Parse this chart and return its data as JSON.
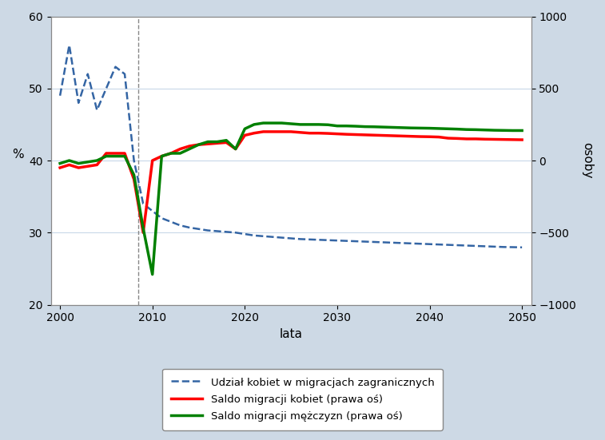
{
  "background_color": "#cdd9e5",
  "plot_bg_color": "#ffffff",
  "left_ylim": [
    20,
    60
  ],
  "right_ylim": [
    -1000,
    1000
  ],
  "left_yticks": [
    20,
    30,
    40,
    50,
    60
  ],
  "right_yticks": [
    -1000,
    -500,
    0,
    500,
    1000
  ],
  "xlim": [
    1999,
    2051
  ],
  "xticks": [
    2000,
    2010,
    2020,
    2030,
    2040,
    2050
  ],
  "xlabel": "lata",
  "ylabel_left": "%",
  "ylabel_right": "osoby",
  "vline_x": 2008.5,
  "legend_labels": [
    "Udział kobiet w migracjach zagranicznych",
    "Saldo migracji kobiet (prawa oś)",
    "Saldo migracji mężczyzn (prawa oś)"
  ],
  "dashed_blue": {
    "x": [
      2000,
      2001,
      2002,
      2003,
      2004,
      2005,
      2006,
      2007,
      2008,
      2009,
      2010,
      2011,
      2012,
      2013,
      2014,
      2015,
      2016,
      2017,
      2018,
      2019,
      2020,
      2021,
      2022,
      2023,
      2024,
      2025,
      2026,
      2027,
      2028,
      2029,
      2030,
      2031,
      2032,
      2033,
      2034,
      2035,
      2036,
      2037,
      2038,
      2039,
      2040,
      2041,
      2042,
      2043,
      2044,
      2045,
      2046,
      2047,
      2048,
      2049,
      2050
    ],
    "y": [
      49,
      56,
      48,
      52,
      47,
      50,
      53,
      52,
      40,
      34,
      33,
      32,
      31.5,
      31,
      30.7,
      30.5,
      30.3,
      30.2,
      30.1,
      30.0,
      29.8,
      29.6,
      29.5,
      29.4,
      29.3,
      29.2,
      29.1,
      29.05,
      29.0,
      28.95,
      28.9,
      28.85,
      28.8,
      28.75,
      28.7,
      28.65,
      28.6,
      28.55,
      28.5,
      28.45,
      28.4,
      28.35,
      28.3,
      28.25,
      28.2,
      28.15,
      28.1,
      28.05,
      28.0,
      27.98,
      27.95
    ],
    "color": "#3465a4",
    "linestyle": "dashed",
    "linewidth": 1.8
  },
  "red_line": {
    "x": [
      2000,
      2001,
      2002,
      2003,
      2004,
      2005,
      2006,
      2007,
      2008,
      2009,
      2010,
      2011,
      2012,
      2013,
      2014,
      2015,
      2016,
      2017,
      2018,
      2019,
      2020,
      2021,
      2022,
      2023,
      2024,
      2025,
      2026,
      2027,
      2028,
      2029,
      2030,
      2031,
      2032,
      2033,
      2034,
      2035,
      2036,
      2037,
      2038,
      2039,
      2040,
      2041,
      2042,
      2043,
      2044,
      2045,
      2046,
      2047,
      2048,
      2049,
      2050
    ],
    "y": [
      -50,
      -30,
      -50,
      -40,
      -30,
      50,
      50,
      50,
      -130,
      -500,
      0,
      30,
      50,
      80,
      100,
      110,
      115,
      120,
      125,
      80,
      175,
      190,
      200,
      200,
      200,
      200,
      195,
      190,
      190,
      188,
      185,
      182,
      180,
      178,
      176,
      174,
      172,
      170,
      168,
      166,
      165,
      163,
      155,
      153,
      150,
      150,
      148,
      147,
      146,
      145,
      144
    ],
    "color": "#ff0000",
    "linestyle": "solid",
    "linewidth": 2.5
  },
  "green_line": {
    "x": [
      2000,
      2001,
      2002,
      2003,
      2004,
      2005,
      2006,
      2007,
      2008,
      2009,
      2010,
      2011,
      2012,
      2013,
      2014,
      2015,
      2016,
      2017,
      2018,
      2019,
      2020,
      2021,
      2022,
      2023,
      2024,
      2025,
      2026,
      2027,
      2028,
      2029,
      2030,
      2031,
      2032,
      2033,
      2034,
      2035,
      2036,
      2037,
      2038,
      2039,
      2040,
      2041,
      2042,
      2043,
      2044,
      2045,
      2046,
      2047,
      2048,
      2049,
      2050
    ],
    "y": [
      -20,
      0,
      -20,
      -10,
      0,
      30,
      30,
      30,
      -100,
      -470,
      -790,
      30,
      50,
      50,
      80,
      110,
      130,
      130,
      140,
      80,
      220,
      250,
      260,
      260,
      260,
      255,
      250,
      250,
      250,
      248,
      240,
      240,
      238,
      235,
      234,
      232,
      230,
      228,
      226,
      225,
      224,
      222,
      220,
      218,
      215,
      214,
      212,
      210,
      209,
      208,
      208
    ],
    "color": "#008000",
    "linestyle": "solid",
    "linewidth": 2.5
  }
}
